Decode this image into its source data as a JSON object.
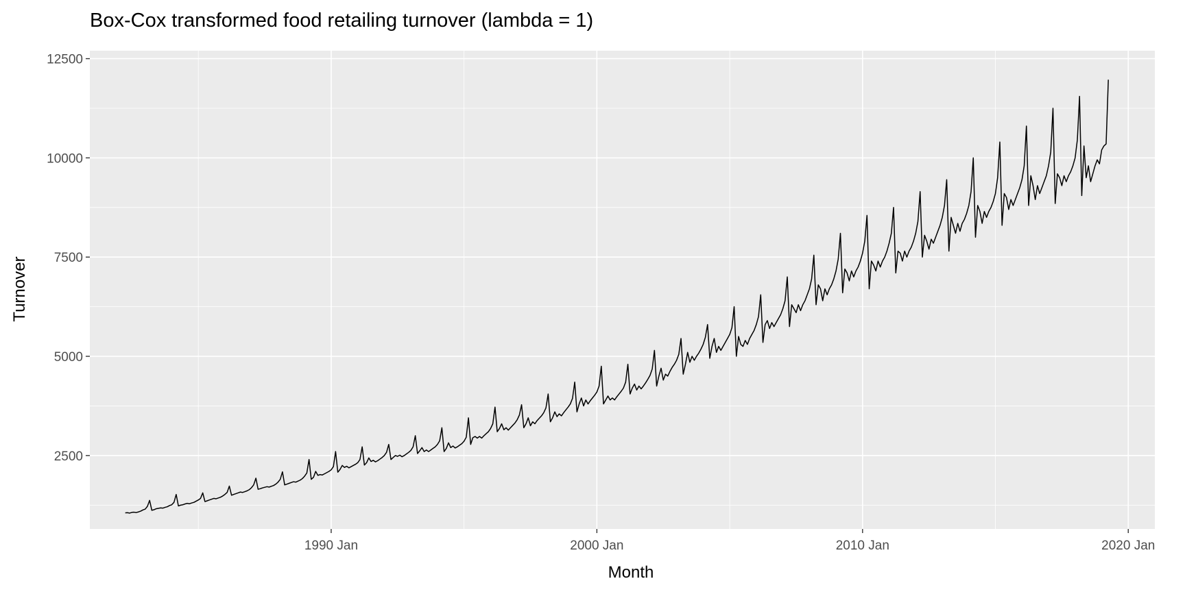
{
  "chart_data": {
    "type": "line",
    "title": "Box-Cox transformed food retailing turnover (lambda = 1)",
    "xlabel": "Month",
    "ylabel": "Turnover",
    "x_range": [
      "1980-12",
      "2021-01"
    ],
    "ylim": [
      650,
      12700
    ],
    "x_ticks": [
      {
        "date": "1990-01",
        "label": "1990 Jan"
      },
      {
        "date": "2000-01",
        "label": "2000 Jan"
      },
      {
        "date": "2010-01",
        "label": "2010 Jan"
      },
      {
        "date": "2020-01",
        "label": "2020 Jan"
      }
    ],
    "y_ticks": [
      2500,
      5000,
      7500,
      10000,
      12500
    ],
    "y_tick_labels": [
      "2500",
      "5000",
      "7500",
      "10000",
      "12500"
    ],
    "grid": true,
    "colors": {
      "panel": "#ebebeb",
      "grid": "#ffffff",
      "line": "#000000"
    },
    "series": [
      {
        "start": "1982-04",
        "values": [
          1055,
          1060,
          1050,
          1068,
          1072,
          1065,
          1080,
          1100,
          1130,
          1150,
          1220,
          1370,
          1120,
          1135,
          1160,
          1170,
          1180,
          1175,
          1195,
          1210,
          1240,
          1260,
          1320,
          1520,
          1230,
          1250,
          1260,
          1280,
          1295,
          1285,
          1305,
          1320,
          1350,
          1380,
          1420,
          1560,
          1340,
          1360,
          1380,
          1400,
          1420,
          1410,
          1430,
          1450,
          1480,
          1520,
          1570,
          1730,
          1500,
          1520,
          1540,
          1560,
          1580,
          1570,
          1590,
          1610,
          1640,
          1690,
          1760,
          1930,
          1650,
          1665,
          1685,
          1700,
          1715,
          1705,
          1725,
          1745,
          1780,
          1830,
          1900,
          2090,
          1760,
          1780,
          1800,
          1820,
          1840,
          1830,
          1855,
          1880,
          1920,
          1980,
          2060,
          2400,
          1900,
          1950,
          2100,
          2000,
          2020,
          2010,
          2040,
          2070,
          2100,
          2140,
          2220,
          2600,
          2080,
          2150,
          2250,
          2200,
          2230,
          2190,
          2220,
          2250,
          2280,
          2320,
          2400,
          2720,
          2260,
          2320,
          2440,
          2350,
          2380,
          2340,
          2370,
          2410,
          2450,
          2500,
          2580,
          2780,
          2400,
          2450,
          2500,
          2480,
          2510,
          2470,
          2500,
          2540,
          2580,
          2630,
          2720,
          3000,
          2550,
          2620,
          2700,
          2600,
          2640,
          2600,
          2640,
          2680,
          2720,
          2780,
          2870,
          3200,
          2600,
          2680,
          2820,
          2700,
          2740,
          2690,
          2720,
          2760,
          2800,
          2860,
          2960,
          3450,
          2780,
          2950,
          2980,
          2940,
          2980,
          2940,
          3000,
          3050,
          3100,
          3180,
          3300,
          3720,
          3100,
          3180,
          3300,
          3150,
          3200,
          3140,
          3200,
          3260,
          3320,
          3400,
          3520,
          3780,
          3200,
          3300,
          3450,
          3250,
          3350,
          3300,
          3380,
          3440,
          3500,
          3580,
          3700,
          4050,
          3350,
          3450,
          3600,
          3480,
          3550,
          3500,
          3580,
          3650,
          3720,
          3800,
          3940,
          4350,
          3600,
          3800,
          3950,
          3750,
          3900,
          3800,
          3880,
          3950,
          4020,
          4100,
          4250,
          4750,
          3800,
          3900,
          4000,
          3900,
          3950,
          3900,
          3980,
          4050,
          4120,
          4200,
          4350,
          4800,
          4050,
          4200,
          4300,
          4150,
          4250,
          4180,
          4250,
          4330,
          4420,
          4520,
          4680,
          5150,
          4250,
          4500,
          4700,
          4400,
          4550,
          4500,
          4620,
          4720,
          4800,
          4900,
          5050,
          5450,
          4550,
          4800,
          5100,
          4850,
          5000,
          4900,
          5000,
          5080,
          5180,
          5300,
          5480,
          5800,
          4950,
          5250,
          5450,
          5100,
          5250,
          5150,
          5250,
          5350,
          5450,
          5550,
          5720,
          6250,
          5000,
          5500,
          5300,
          5250,
          5400,
          5300,
          5450,
          5550,
          5650,
          5800,
          6000,
          6550,
          5350,
          5800,
          5900,
          5700,
          5850,
          5750,
          5850,
          5950,
          6050,
          6200,
          6400,
          7000,
          5750,
          6300,
          6200,
          6100,
          6300,
          6150,
          6300,
          6400,
          6550,
          6700,
          6950,
          7550,
          6300,
          6800,
          6700,
          6400,
          6700,
          6550,
          6700,
          6800,
          6950,
          7150,
          7450,
          8100,
          6600,
          7200,
          7100,
          6900,
          7150,
          7000,
          7150,
          7250,
          7400,
          7600,
          7900,
          8550,
          6700,
          7400,
          7300,
          7150,
          7400,
          7250,
          7400,
          7500,
          7650,
          7850,
          8100,
          8750,
          7100,
          7650,
          7600,
          7400,
          7650,
          7500,
          7650,
          7750,
          7900,
          8100,
          8400,
          9150,
          7500,
          8050,
          7900,
          7700,
          7950,
          7850,
          8000,
          8150,
          8300,
          8500,
          8800,
          9450,
          7650,
          8500,
          8300,
          8100,
          8350,
          8150,
          8350,
          8450,
          8600,
          8800,
          9150,
          10000,
          8000,
          8800,
          8650,
          8350,
          8650,
          8500,
          8650,
          8750,
          8900,
          9100,
          9500,
          10400,
          8300,
          9100,
          9000,
          8700,
          8950,
          8800,
          8950,
          9100,
          9250,
          9450,
          9800,
          10800,
          8800,
          9550,
          9300,
          8950,
          9300,
          9100,
          9250,
          9400,
          9550,
          9800,
          10150,
          11250,
          8850,
          9600,
          9500,
          9300,
          9550,
          9400,
          9550,
          9650,
          9800,
          10000,
          10450,
          11550,
          9050,
          10300,
          9500,
          9800,
          9400,
          9600,
          9800,
          9950,
          9850,
          10200,
          10300,
          10350,
          11970
        ]
      }
    ]
  }
}
